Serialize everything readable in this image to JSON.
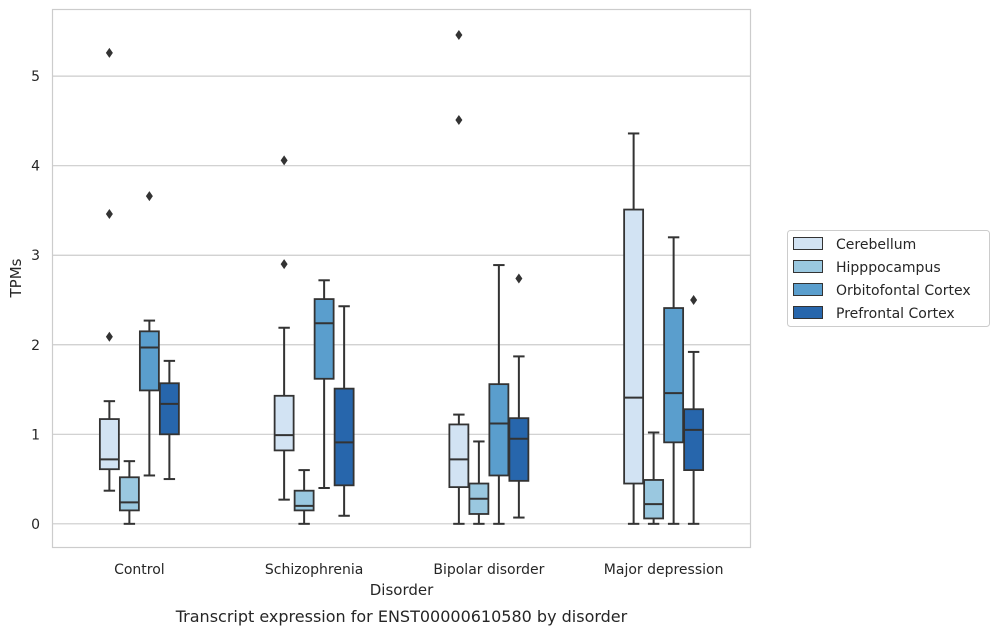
{
  "chart_data": {
    "type": "box",
    "title": "Transcript expression for ENST00000610580 by disorder",
    "xlabel": "Disorder",
    "ylabel": "TPMs",
    "ylim": [
      -0.27,
      5.75
    ],
    "yticks": [
      0,
      1,
      2,
      3,
      4,
      5
    ],
    "grid": "horizontal",
    "legend_position": "right",
    "categories": [
      "Control",
      "Schizophrenia",
      "Bipolar disorder",
      "Major depression"
    ],
    "series": [
      {
        "name": "Cerebellum",
        "color": "#d2e3f3",
        "boxes": [
          {
            "whisker_low": 0.37,
            "q1": 0.61,
            "median": 0.72,
            "q3": 1.17,
            "whisker_high": 1.37,
            "outliers": [
              2.09,
              3.46,
              5.26
            ]
          },
          {
            "whisker_low": 0.27,
            "q1": 0.82,
            "median": 0.99,
            "q3": 1.43,
            "whisker_high": 2.19,
            "outliers": [
              2.9,
              4.06
            ]
          },
          {
            "whisker_low": 0.0,
            "q1": 0.41,
            "median": 0.72,
            "q3": 1.11,
            "whisker_high": 1.22,
            "outliers": [
              4.51,
              5.46
            ]
          },
          {
            "whisker_low": 0.0,
            "q1": 0.45,
            "median": 1.41,
            "q3": 3.51,
            "whisker_high": 4.36,
            "outliers": []
          }
        ]
      },
      {
        "name": "Hipppocampus",
        "color": "#9ac8e0",
        "boxes": [
          {
            "whisker_low": 0.0,
            "q1": 0.15,
            "median": 0.24,
            "q3": 0.52,
            "whisker_high": 0.7,
            "outliers": []
          },
          {
            "whisker_low": 0.0,
            "q1": 0.15,
            "median": 0.2,
            "q3": 0.37,
            "whisker_high": 0.6,
            "outliers": []
          },
          {
            "whisker_low": 0.0,
            "q1": 0.11,
            "median": 0.28,
            "q3": 0.45,
            "whisker_high": 0.92,
            "outliers": []
          },
          {
            "whisker_low": 0.0,
            "q1": 0.06,
            "median": 0.22,
            "q3": 0.49,
            "whisker_high": 1.02,
            "outliers": []
          }
        ]
      },
      {
        "name": "Orbitofontal Cortex",
        "color": "#5a9ecd",
        "boxes": [
          {
            "whisker_low": 0.54,
            "q1": 1.49,
            "median": 1.97,
            "q3": 2.15,
            "whisker_high": 2.27,
            "outliers": [
              3.66
            ]
          },
          {
            "whisker_low": 0.4,
            "q1": 1.62,
            "median": 2.24,
            "q3": 2.51,
            "whisker_high": 2.72,
            "outliers": []
          },
          {
            "whisker_low": 0.0,
            "q1": 0.54,
            "median": 1.12,
            "q3": 1.56,
            "whisker_high": 2.89,
            "outliers": []
          },
          {
            "whisker_low": 0.0,
            "q1": 0.91,
            "median": 1.46,
            "q3": 2.41,
            "whisker_high": 3.2,
            "outliers": []
          }
        ]
      },
      {
        "name": "Prefrontal Cortex",
        "color": "#2766ac",
        "boxes": [
          {
            "whisker_low": 0.5,
            "q1": 1.0,
            "median": 1.34,
            "q3": 1.57,
            "whisker_high": 1.82,
            "outliers": []
          },
          {
            "whisker_low": 0.09,
            "q1": 0.43,
            "median": 0.91,
            "q3": 1.51,
            "whisker_high": 2.43,
            "outliers": []
          },
          {
            "whisker_low": 0.07,
            "q1": 0.48,
            "median": 0.95,
            "q3": 1.18,
            "whisker_high": 1.87,
            "outliers": [
              2.74
            ]
          },
          {
            "whisker_low": 0.0,
            "q1": 0.6,
            "median": 1.05,
            "q3": 1.28,
            "whisker_high": 1.92,
            "outliers": [
              2.5
            ]
          }
        ]
      }
    ]
  }
}
